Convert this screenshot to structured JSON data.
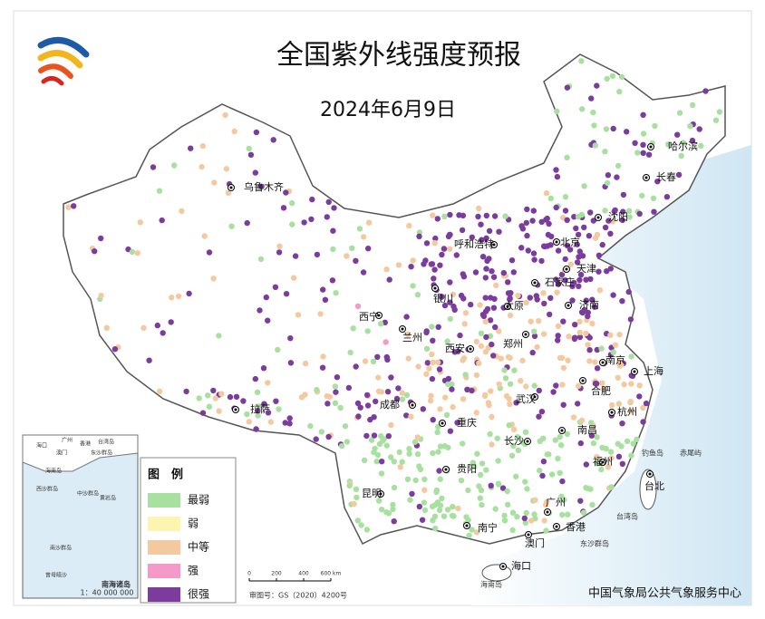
{
  "header": {
    "title": "全国紫外线强度预报",
    "date": "2024年6月9日"
  },
  "legend": {
    "title": "图　例",
    "items": [
      {
        "label": "最弱",
        "color": "#a8e0a0"
      },
      {
        "label": "弱",
        "color": "#fbf5b0"
      },
      {
        "label": "中等",
        "color": "#f5c9a0"
      },
      {
        "label": "强",
        "color": "#f59ac8"
      },
      {
        "label": "很强",
        "color": "#7b3c9e"
      }
    ]
  },
  "cities": [
    "哈尔滨",
    "长春",
    "乌鲁木齐",
    "沈阳",
    "呼和浩特",
    "北京",
    "天津",
    "石家庄",
    "银川",
    "太原",
    "济南",
    "西宁",
    "兰州",
    "西安",
    "郑州",
    "南京",
    "上海",
    "合肥",
    "拉萨",
    "成都",
    "武汉",
    "重庆",
    "杭州",
    "南昌",
    "长沙",
    "贵阳",
    "福州",
    "台北",
    "昆明",
    "广州",
    "南宁",
    "香港",
    "澳门",
    "海口"
  ],
  "places": [
    "台湾岛",
    "钓鱼岛",
    "赤尾屿",
    "东沙群岛",
    "海南岛"
  ],
  "inset": {
    "title": "南海诸岛",
    "scale": "1：40 000 000",
    "labels": [
      "海口",
      "广州",
      "香港",
      "澳门",
      "台湾岛",
      "东沙群岛",
      "海南岛",
      "西沙群岛",
      "中沙群岛",
      "黄岩岛",
      "南沙群岛",
      "曾母暗沙"
    ]
  },
  "scale_bar": {
    "labels": [
      "0",
      "200",
      "400",
      "600 km"
    ]
  },
  "map_number": "审图号：GS（2020）4200号",
  "credit": "中国气象局公共气象服务中心"
}
